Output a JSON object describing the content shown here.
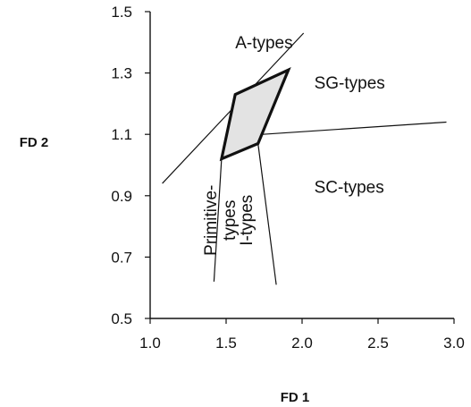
{
  "chart_data": {
    "type": "line",
    "xlabel": "FD 1",
    "ylabel": "FD 2",
    "xlim": [
      1.0,
      3.0
    ],
    "ylim": [
      0.5,
      1.5
    ],
    "xticks": [
      "1.0",
      "1.5",
      "2.0",
      "2.5",
      "3.0"
    ],
    "yticks": [
      "0.5",
      "0.7",
      "0.9",
      "1.1",
      "1.3",
      "1.5"
    ],
    "grid": false,
    "region_labels": [
      {
        "name": "A-types",
        "x": 1.56,
        "y": 1.38
      },
      {
        "name": "SG-types",
        "x": 2.08,
        "y": 1.25
      },
      {
        "name": "SC-types",
        "x": 2.08,
        "y": 0.91
      },
      {
        "name": "Primitive-types",
        "x": 1.46,
        "y": 0.82
      },
      {
        "name": "I-types",
        "x": 1.67,
        "y": 0.82
      }
    ],
    "boundary_lines": [
      {
        "name": "A/SC boundary",
        "points": [
          [
            1.08,
            0.94
          ],
          [
            2.01,
            1.43
          ]
        ]
      },
      {
        "name": "SG/SC boundary",
        "points": [
          [
            1.74,
            1.1
          ],
          [
            2.95,
            1.14
          ]
        ]
      },
      {
        "name": "Primitive-types left boundary",
        "points": [
          [
            1.47,
            1.02
          ],
          [
            1.42,
            0.62
          ]
        ]
      },
      {
        "name": "I-types right boundary",
        "points": [
          [
            1.71,
            1.07
          ],
          [
            1.83,
            0.61
          ]
        ]
      }
    ],
    "shaded_region": {
      "name": "shaded quadrilateral",
      "fill": "#e3e3e3",
      "points": [
        [
          1.47,
          1.02
        ],
        [
          1.56,
          1.23
        ],
        [
          1.91,
          1.31
        ],
        [
          1.71,
          1.07
        ]
      ]
    }
  }
}
